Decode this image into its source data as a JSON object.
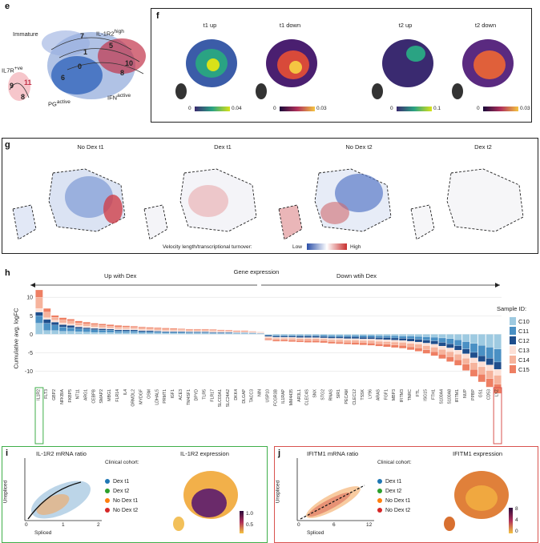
{
  "panels": {
    "e": {
      "label": "e",
      "annotations": [
        "Immature",
        "IL-1R2",
        "high",
        "IL7R",
        "+ve",
        "PG",
        "active",
        "IFN",
        "active"
      ],
      "clusters": [
        "7",
        "1",
        "5",
        "0",
        "10",
        "8",
        "6",
        "9",
        "11",
        "8"
      ]
    },
    "f": {
      "label": "f",
      "titles": [
        "t1 up",
        "t1 down",
        "t2 up",
        "t2 down"
      ],
      "scales": [
        {
          "min": "0",
          "max": "0.04"
        },
        {
          "min": "0",
          "max": "0.03"
        },
        {
          "min": "0",
          "max": "0.1"
        },
        {
          "min": "0",
          "max": "0.03"
        }
      ]
    },
    "g": {
      "label": "g",
      "titles": [
        "No Dex t1",
        "Dex t1",
        "No Dex t2",
        "Dex t2"
      ],
      "legend_text": "Velocity length/transcriptional turnover:",
      "low": "Low",
      "high": "High"
    },
    "h": {
      "label": "h",
      "title": "Gene expression",
      "up_label": "Up with Dex",
      "down_label": "Down wtih Dex",
      "ylabel": "Cumulative avg. logFC",
      "legend_title": "Sample ID:",
      "yticks": [
        "10",
        "5",
        "0",
        "-5",
        "-10"
      ]
    },
    "i": {
      "label": "i",
      "title": "IL-1R2 mRNA ratio",
      "xlabel": "Spliced",
      "ylabel": "Unspliced",
      "xticks": [
        "0",
        "1",
        "2"
      ],
      "cohort_title": "Clinical cohort:",
      "expr_title": "IL-1R2 expression",
      "scale": [
        "1.0",
        "0.5"
      ]
    },
    "j": {
      "label": "j",
      "title": "IFITM1 mRNA ratio",
      "xlabel": "Spliced",
      "ylabel": "Unspliced",
      "xticks": [
        "0",
        "6",
        "12"
      ],
      "cohort_title": "Clinical cohort:",
      "expr_title": "IFITM1 expression",
      "scale": [
        "8",
        "4",
        "0"
      ]
    }
  },
  "cohorts": [
    {
      "name": "Dex t1",
      "color": "#1f77b4"
    },
    {
      "name": "Dex t2",
      "color": "#2ca02c"
    },
    {
      "name": "No Dex t1",
      "color": "#ff7f0e"
    },
    {
      "name": "No Dex t2",
      "color": "#d62728"
    }
  ],
  "chart_data": {
    "type": "bar",
    "title": "Gene expression",
    "ylabel": "Cumulative avg. logFC",
    "ylim": [
      -14,
      12
    ],
    "series_names": [
      "C10",
      "C11",
      "C12",
      "C13",
      "C14",
      "C15"
    ],
    "series_colors": [
      "#9ecae1",
      "#4a90c4",
      "#1f4e8c",
      "#fde0d6",
      "#f6b39c",
      "#ee7f63"
    ],
    "categories": [
      "IL1R2",
      "FLT3",
      "GBP2",
      "NFKBIA",
      "FKBP5",
      "NT11",
      "ARG1",
      "CEBPB",
      "SMAP2",
      "MBG1",
      "FLR14",
      "IL4",
      "ORMDL2",
      "MYDGF",
      "OSM",
      "LDHAL5",
      "PRMT1",
      "IGF1",
      "ACE3",
      "TM4SF1",
      "DPYD",
      "TLR5",
      "FLR17",
      "SLC03A1",
      "SLC24A2",
      "DKK4",
      "DLGAP",
      "TACC3",
      "NIN",
      "USP10",
      "FCGR3B",
      "IL1RAP",
      "MM4435",
      "AR3L1",
      "CLEC4S",
      "SNX",
      "STG2",
      "RNAS",
      "SIR1",
      "PECAM",
      "CLEC12",
      "TSSK",
      "LY96",
      "ARAS",
      "FGF1",
      "MBP3",
      "IFITM3",
      "TNRC",
      "FTL",
      "ISG15",
      "FTH1",
      "S100A4",
      "S100A8",
      "IFITM1",
      "NUP",
      "PPBP",
      "GS1",
      "CD53",
      "LYZ"
    ],
    "stacks": [
      [
        3,
        2,
        1,
        1,
        3,
        2
      ],
      [
        1,
        2,
        1,
        0.5,
        1.5,
        1
      ],
      [
        1,
        1.5,
        0.8,
        0.5,
        0.8,
        0.5
      ],
      [
        0.8,
        1.2,
        0.6,
        0.5,
        0.8,
        0.6
      ],
      [
        0.8,
        1,
        0.6,
        0.4,
        0.8,
        0.5
      ],
      [
        0.7,
        0.8,
        0.5,
        0.4,
        0.7,
        0.5
      ],
      [
        0.6,
        0.8,
        0.4,
        0.4,
        0.6,
        0.5
      ],
      [
        0.5,
        0.7,
        0.4,
        0.4,
        0.6,
        0.4
      ],
      [
        0.5,
        0.6,
        0.4,
        0.3,
        0.6,
        0.4
      ],
      [
        0.5,
        0.6,
        0.3,
        0.3,
        0.5,
        0.4
      ],
      [
        0.4,
        0.5,
        0.3,
        0.3,
        0.5,
        0.4
      ],
      [
        0.4,
        0.5,
        0.3,
        0.3,
        0.5,
        0.3
      ],
      [
        0.4,
        0.5,
        0.3,
        0.3,
        0.4,
        0.3
      ],
      [
        0.3,
        0.4,
        0.3,
        0.3,
        0.4,
        0.3
      ],
      [
        0.3,
        0.4,
        0.3,
        0.2,
        0.4,
        0.3
      ],
      [
        0.3,
        0.4,
        0.2,
        0.2,
        0.4,
        0.3
      ],
      [
        0.3,
        0.3,
        0.2,
        0.2,
        0.4,
        0.3
      ],
      [
        0.3,
        0.3,
        0.2,
        0.2,
        0.3,
        0.3
      ],
      [
        0.3,
        0.3,
        0.2,
        0.2,
        0.3,
        0.2
      ],
      [
        0.2,
        0.3,
        0.2,
        0.2,
        0.3,
        0.2
      ],
      [
        0.2,
        0.3,
        0.2,
        0.2,
        0.3,
        0.2
      ],
      [
        0.2,
        0.3,
        0.2,
        0.2,
        0.3,
        0.2
      ],
      [
        0.2,
        0.2,
        0.2,
        0.2,
        0.3,
        0.2
      ],
      [
        0.2,
        0.2,
        0.2,
        0.2,
        0.2,
        0.2
      ],
      [
        0.2,
        0.2,
        0.2,
        0.1,
        0.2,
        0.2
      ],
      [
        0.2,
        0.2,
        0.1,
        0.1,
        0.2,
        0.2
      ],
      [
        0.2,
        0.2,
        0.1,
        0.1,
        0.2,
        0.2
      ],
      [
        0.1,
        0.2,
        0.1,
        0.1,
        0.2,
        0.1
      ],
      [
        0.1,
        0.1,
        0.1,
        0.1,
        0.1,
        0.1
      ],
      [
        -0.1,
        -0.2,
        -0.3,
        -0.3,
        -0.4,
        -0.3
      ],
      [
        -0.2,
        -0.3,
        -0.3,
        -0.3,
        -0.4,
        -0.4
      ],
      [
        -0.2,
        -0.3,
        -0.3,
        -0.3,
        -0.4,
        -0.4
      ],
      [
        -0.2,
        -0.3,
        -0.3,
        -0.3,
        -0.5,
        -0.4
      ],
      [
        -0.2,
        -0.3,
        -0.4,
        -0.3,
        -0.5,
        -0.4
      ],
      [
        -0.2,
        -0.3,
        -0.4,
        -0.3,
        -0.5,
        -0.5
      ],
      [
        -0.2,
        -0.3,
        -0.4,
        -0.3,
        -0.5,
        -0.5
      ],
      [
        -0.2,
        -0.4,
        -0.4,
        -0.3,
        -0.5,
        -0.5
      ],
      [
        -0.3,
        -0.4,
        -0.4,
        -0.4,
        -0.5,
        -0.5
      ],
      [
        -0.3,
        -0.4,
        -0.4,
        -0.4,
        -0.6,
        -0.5
      ],
      [
        -0.3,
        -0.4,
        -0.5,
        -0.4,
        -0.6,
        -0.5
      ],
      [
        -0.3,
        -0.4,
        -0.5,
        -0.4,
        -0.6,
        -0.6
      ],
      [
        -0.3,
        -0.5,
        -0.5,
        -0.4,
        -0.6,
        -0.6
      ],
      [
        -0.3,
        -0.5,
        -0.5,
        -0.4,
        -0.7,
        -0.6
      ],
      [
        -0.4,
        -0.5,
        -0.5,
        -0.5,
        -0.7,
        -0.6
      ],
      [
        -0.4,
        -0.5,
        -0.6,
        -0.5,
        -0.7,
        -0.7
      ],
      [
        -0.4,
        -0.6,
        -0.6,
        -0.5,
        -0.8,
        -0.7
      ],
      [
        -0.5,
        -0.6,
        -0.6,
        -0.5,
        -0.8,
        -0.8
      ],
      [
        -0.5,
        -0.7,
        -0.7,
        -0.6,
        -0.9,
        -0.8
      ],
      [
        -0.6,
        -0.8,
        -0.7,
        -0.6,
        -1,
        -0.9
      ],
      [
        -0.7,
        -0.9,
        -0.8,
        -0.7,
        -1.1,
        -1
      ],
      [
        -0.8,
        -1,
        -0.9,
        -0.8,
        -1.2,
        -1.1
      ],
      [
        -1,
        -1.2,
        -1,
        -0.9,
        -1.3,
        -1.2
      ],
      [
        -1.2,
        -1.4,
        -1.1,
        -1,
        -1.4,
        -1.3
      ],
      [
        -1.5,
        -1.6,
        -1.2,
        -1.1,
        -1.5,
        -1.5
      ],
      [
        -2,
        -2,
        -1.3,
        -1.2,
        -1.6,
        -1.7
      ],
      [
        -2.5,
        -2.4,
        -1.5,
        -1.3,
        -1.8,
        -1.9
      ],
      [
        -3,
        -2.8,
        -1.6,
        -1.4,
        -2,
        -2.1
      ],
      [
        -3.5,
        -3,
        -1.8,
        -1.5,
        -2.2,
        -2.3
      ],
      [
        -4,
        -3.5,
        -2,
        -1.6,
        -2.4,
        -2.5
      ]
    ]
  }
}
